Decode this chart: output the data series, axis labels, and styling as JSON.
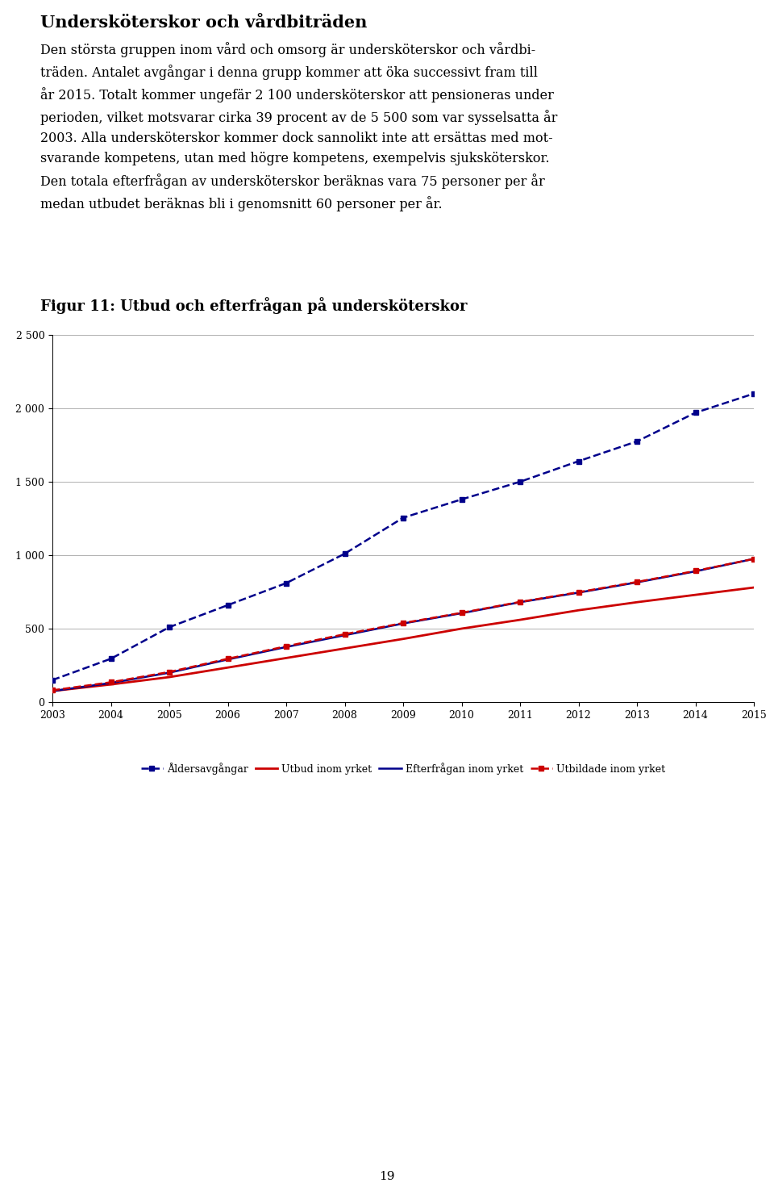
{
  "title": "Figur 11: Utbud och efterfrågan på undersköterskor",
  "years": [
    2003,
    2004,
    2005,
    2006,
    2007,
    2008,
    2009,
    2010,
    2011,
    2012,
    2013,
    2014,
    2015
  ],
  "aldersavgangar": [
    150,
    295,
    510,
    660,
    810,
    1010,
    1255,
    1380,
    1500,
    1640,
    1775,
    1970,
    2100
  ],
  "utbud": [
    75,
    120,
    170,
    235,
    300,
    365,
    430,
    500,
    560,
    625,
    680,
    730,
    780
  ],
  "efterfragan": [
    75,
    130,
    200,
    290,
    375,
    455,
    535,
    605,
    680,
    745,
    815,
    890,
    975
  ],
  "utbildade": [
    80,
    135,
    205,
    295,
    380,
    462,
    538,
    608,
    682,
    748,
    818,
    893,
    975
  ],
  "color_navy": "#00008B",
  "color_red": "#CC0000",
  "ylim_min": 0,
  "ylim_max": 2500,
  "yticks": [
    0,
    500,
    1000,
    1500,
    2000,
    2500
  ],
  "header_title": "Undersköterskor och vårdbiträden",
  "para_line1": "Den största gruppen inom vård och omsorg är undersköterskor och vårdbi-",
  "para_line2": "träden. Antalet avgångar i denna grupp kommer att öka successivt fram till",
  "para_line3": "år 2015. Totalt kommer ungefär 2 100 undersköterskor att pensioneras under",
  "para_line4": "perioden, vilket motsvarar cirka 39 procent av de 5 500 som var sysselsatta år",
  "para_line5": "2003. Alla undersköterskor kommer dock sannolikt inte att ersättas med mot-",
  "para_line6": "svarande kompetens, utan med högre kompetens, exempelvis sjuksköterskor.",
  "para_line7": "Den totala efterfrågan av undersköterskor beräknas vara 75 personer per år",
  "para_line8": "medan utbudet beräknas bli i genomsnitt 60 personer per år.",
  "legend_labels": [
    "Åldersavgångar",
    "Utbud inom yrket",
    "Efterfrågan inom yrket",
    "Utbildade inom yrket"
  ],
  "page_number": "19"
}
